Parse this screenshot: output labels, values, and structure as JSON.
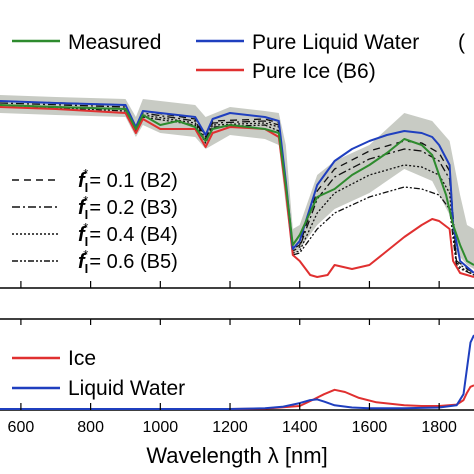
{
  "chart_data": [
    {
      "type": "line",
      "panel": "upper",
      "x_range": [
        540,
        1900
      ],
      "legend": {
        "placement": "top",
        "entries": [
          {
            "label": "Measured",
            "color": "#2e8b2e",
            "style": "solid"
          },
          {
            "label": "Pure Liquid Water",
            "color": "#1f3fbf",
            "style": "solid"
          },
          {
            "label": "Pure Ice (B6)",
            "color": "#e03030",
            "style": "solid"
          },
          {
            "label": "(",
            "color": "",
            "style": "none"
          }
        ]
      },
      "inset_legend": {
        "placement": "left",
        "entries": [
          {
            "label_prefix": "f",
            "label_sub": "I",
            "label_sup": "*",
            "label_suffix": "= 0.1 (B2)",
            "dash": "7,5"
          },
          {
            "label_prefix": "f",
            "label_sub": "I",
            "label_sup": "*",
            "label_suffix": "= 0.2 (B3)",
            "dash": "8,3,2,3"
          },
          {
            "label_prefix": "f",
            "label_sub": "I",
            "label_sup": "*",
            "label_suffix": "= 0.4 (B4)",
            "dash": "2,2"
          },
          {
            "label_prefix": "f",
            "label_sub": "I",
            "label_sup": "*",
            "label_suffix": "= 0.6 (B5)",
            "dash": "6,2,2,2,2,2"
          }
        ]
      },
      "y_range": [
        0,
        1
      ],
      "uncertainty_band": {
        "color": "#c8cbc4",
        "x": [
          540,
          700,
          900,
          930,
          950,
          1000,
          1100,
          1130,
          1200,
          1300,
          1340,
          1360,
          1380,
          1400,
          1450,
          1500,
          1600,
          1700,
          1780,
          1830,
          1860,
          1880,
          1900
        ],
        "upper": [
          0.95,
          0.94,
          0.93,
          0.84,
          0.93,
          0.92,
          0.9,
          0.84,
          0.89,
          0.87,
          0.86,
          0.7,
          0.28,
          0.3,
          0.55,
          0.62,
          0.7,
          0.86,
          0.82,
          0.72,
          0.45,
          0.3,
          0.28
        ],
        "lower": [
          0.86,
          0.85,
          0.84,
          0.74,
          0.8,
          0.76,
          0.74,
          0.68,
          0.75,
          0.73,
          0.7,
          0.4,
          0.15,
          0.18,
          0.3,
          0.38,
          0.46,
          0.58,
          0.52,
          0.35,
          0.14,
          0.1,
          0.08
        ]
      },
      "series": [
        {
          "name": "Measured",
          "color": "#2e8b2e",
          "dash": "",
          "x": [
            540,
            700,
            900,
            930,
            950,
            1000,
            1050,
            1100,
            1130,
            1150,
            1200,
            1300,
            1340,
            1360,
            1380,
            1400,
            1450,
            1500,
            1550,
            1600,
            1650,
            1700,
            1750,
            1780,
            1800,
            1820,
            1840,
            1860,
            1880,
            1900
          ],
          "y": [
            0.9,
            0.89,
            0.88,
            0.78,
            0.85,
            0.8,
            0.82,
            0.79,
            0.72,
            0.78,
            0.8,
            0.78,
            0.76,
            0.5,
            0.2,
            0.25,
            0.44,
            0.48,
            0.55,
            0.6,
            0.66,
            0.73,
            0.7,
            0.65,
            0.55,
            0.45,
            0.3,
            0.2,
            0.12,
            0.1
          ]
        },
        {
          "name": "Pure Liquid Water",
          "color": "#1f3fbf",
          "dash": "",
          "x": [
            540,
            700,
            900,
            930,
            950,
            1000,
            1100,
            1130,
            1150,
            1200,
            1300,
            1340,
            1360,
            1380,
            1400,
            1450,
            1500,
            1550,
            1600,
            1650,
            1700,
            1750,
            1780,
            1800,
            1830,
            1840,
            1860,
            1900
          ],
          "y": [
            0.92,
            0.91,
            0.9,
            0.79,
            0.87,
            0.86,
            0.84,
            0.75,
            0.83,
            0.86,
            0.84,
            0.82,
            0.52,
            0.18,
            0.22,
            0.5,
            0.62,
            0.68,
            0.72,
            0.75,
            0.77,
            0.76,
            0.74,
            0.7,
            0.6,
            0.3,
            0.12,
            0.06
          ]
        },
        {
          "name": "Pure Ice (B6)",
          "color": "#e03030",
          "dash": "",
          "x": [
            540,
            700,
            900,
            930,
            950,
            1000,
            1100,
            1130,
            1150,
            1200,
            1300,
            1340,
            1360,
            1380,
            1400,
            1430,
            1450,
            1480,
            1500,
            1550,
            1600,
            1650,
            1700,
            1750,
            1780,
            1800,
            1830,
            1840,
            1860,
            1900
          ],
          "y": [
            0.89,
            0.88,
            0.86,
            0.76,
            0.83,
            0.78,
            0.78,
            0.69,
            0.76,
            0.79,
            0.78,
            0.74,
            0.47,
            0.15,
            0.12,
            0.05,
            0.04,
            0.05,
            0.1,
            0.08,
            0.1,
            0.17,
            0.24,
            0.3,
            0.33,
            0.32,
            0.28,
            0.12,
            0.06,
            0.04
          ]
        },
        {
          "name": "B2",
          "color": "#111111",
          "dash": "7,5",
          "x": [
            540,
            900,
            930,
            950,
            1100,
            1130,
            1150,
            1300,
            1340,
            1360,
            1380,
            1400,
            1450,
            1500,
            1600,
            1700,
            1750,
            1800,
            1830,
            1850,
            1900
          ],
          "y": [
            0.92,
            0.9,
            0.79,
            0.87,
            0.83,
            0.74,
            0.82,
            0.83,
            0.81,
            0.51,
            0.18,
            0.2,
            0.47,
            0.58,
            0.67,
            0.72,
            0.71,
            0.66,
            0.57,
            0.12,
            0.06
          ]
        },
        {
          "name": "B3",
          "color": "#111111",
          "dash": "8,3,2,3",
          "x": [
            540,
            900,
            930,
            950,
            1100,
            1130,
            1150,
            1300,
            1340,
            1360,
            1380,
            1400,
            1450,
            1500,
            1600,
            1700,
            1750,
            1800,
            1830,
            1850,
            1900
          ],
          "y": [
            0.91,
            0.89,
            0.78,
            0.86,
            0.82,
            0.73,
            0.81,
            0.82,
            0.8,
            0.5,
            0.17,
            0.19,
            0.43,
            0.54,
            0.63,
            0.68,
            0.67,
            0.62,
            0.53,
            0.11,
            0.06
          ]
        },
        {
          "name": "B4",
          "color": "#111111",
          "dash": "2,2",
          "x": [
            540,
            900,
            930,
            950,
            1100,
            1130,
            1150,
            1300,
            1340,
            1360,
            1380,
            1400,
            1450,
            1500,
            1600,
            1700,
            1750,
            1800,
            1830,
            1850,
            1900
          ],
          "y": [
            0.9,
            0.88,
            0.77,
            0.85,
            0.81,
            0.72,
            0.8,
            0.81,
            0.79,
            0.49,
            0.16,
            0.17,
            0.36,
            0.46,
            0.55,
            0.6,
            0.59,
            0.55,
            0.46,
            0.1,
            0.05
          ]
        },
        {
          "name": "B5",
          "color": "#111111",
          "dash": "6,2,2,2,2,2",
          "x": [
            540,
            900,
            930,
            950,
            1100,
            1130,
            1150,
            1300,
            1340,
            1360,
            1380,
            1400,
            1450,
            1500,
            1600,
            1700,
            1750,
            1800,
            1830,
            1850,
            1900
          ],
          "y": [
            0.9,
            0.87,
            0.77,
            0.84,
            0.8,
            0.71,
            0.79,
            0.8,
            0.77,
            0.48,
            0.15,
            0.16,
            0.28,
            0.36,
            0.44,
            0.49,
            0.48,
            0.45,
            0.38,
            0.09,
            0.05
          ]
        }
      ]
    },
    {
      "type": "line",
      "panel": "lower",
      "x_range": [
        540,
        1900
      ],
      "y_range": [
        0,
        1
      ],
      "xlabel": "Wavelength λ [nm]",
      "x_ticks": [
        600,
        800,
        1000,
        1200,
        1400,
        1600,
        1800
      ],
      "legend": {
        "placement": "left",
        "entries": [
          {
            "label": "Ice",
            "color": "#e03030"
          },
          {
            "label": "Liquid Water",
            "color": "#1f3fbf"
          }
        ]
      },
      "series": [
        {
          "name": "Ice",
          "color": "#e03030",
          "x": [
            540,
            1200,
            1300,
            1400,
            1440,
            1470,
            1500,
            1530,
            1570,
            1620,
            1700,
            1750,
            1800,
            1850,
            1870,
            1880,
            1890,
            1900
          ],
          "y": [
            0,
            0,
            0.005,
            0.04,
            0.13,
            0.2,
            0.26,
            0.23,
            0.15,
            0.09,
            0.05,
            0.04,
            0.04,
            0.06,
            0.12,
            0.22,
            0.3,
            0.32
          ]
        },
        {
          "name": "Liquid Water",
          "color": "#1f3fbf",
          "x": [
            540,
            1200,
            1300,
            1350,
            1400,
            1430,
            1450,
            1470,
            1500,
            1550,
            1600,
            1700,
            1800,
            1850,
            1870,
            1880,
            1890,
            1900
          ],
          "y": [
            0,
            0,
            0.01,
            0.03,
            0.08,
            0.12,
            0.13,
            0.1,
            0.05,
            0.02,
            0.01,
            0.01,
            0.02,
            0.05,
            0.2,
            0.55,
            0.9,
            1.0
          ]
        }
      ]
    }
  ]
}
